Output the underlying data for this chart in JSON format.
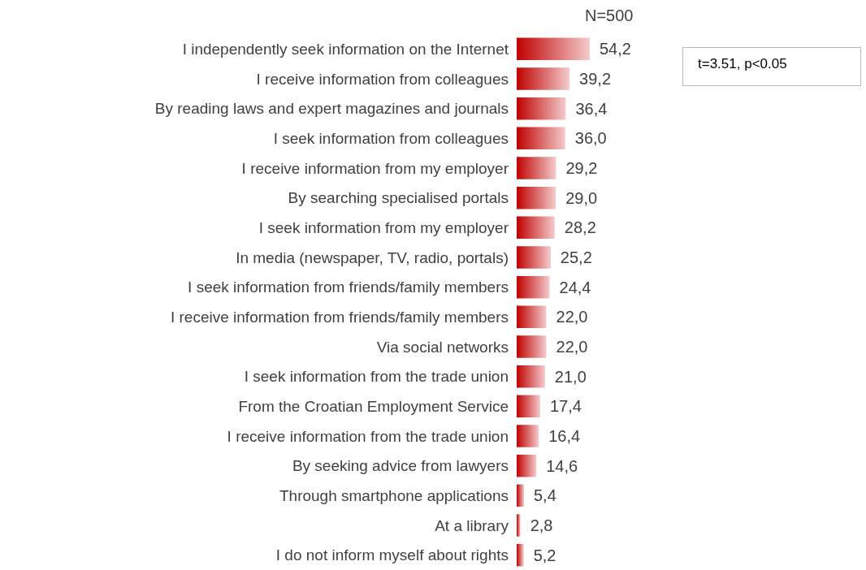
{
  "chart_data": {
    "type": "bar",
    "orientation": "horizontal",
    "categories": [
      "I independently seek information on the Internet",
      "I receive information from colleagues",
      "By reading laws and expert magazines and journals",
      "I seek information from colleagues",
      "I receive information from my employer",
      "By searching specialised portals",
      "I seek information from my employer",
      "In media (newspaper, TV, radio, portals)",
      "I seek information from friends/family members",
      "I receive information from friends/family members",
      "Via social networks",
      "I seek information from the trade union",
      "From the Croatian Employment Service",
      "I receive information from the trade union",
      "By seeking advice from lawyers",
      "Through smartphone applications",
      "At a library",
      "I do not inform myself about rights"
    ],
    "values": [
      54.2,
      39.2,
      36.4,
      36.0,
      29.2,
      29.0,
      28.2,
      25.2,
      24.4,
      22.0,
      22.0,
      21.0,
      17.4,
      16.4,
      14.6,
      5.4,
      2.8,
      5.2
    ],
    "value_labels": [
      "54,2",
      "39,2",
      "36,4",
      "36,0",
      "29,2",
      "29,0",
      "28,2",
      "25,2",
      "24,4",
      "22,0",
      "22,0",
      "21,0",
      "17,4",
      "16,4",
      "14,6",
      "5,4",
      "2,8",
      "5,2"
    ],
    "color": "#c00000",
    "annotations": [
      "N=500",
      "t=3.51, p<0.05"
    ]
  }
}
